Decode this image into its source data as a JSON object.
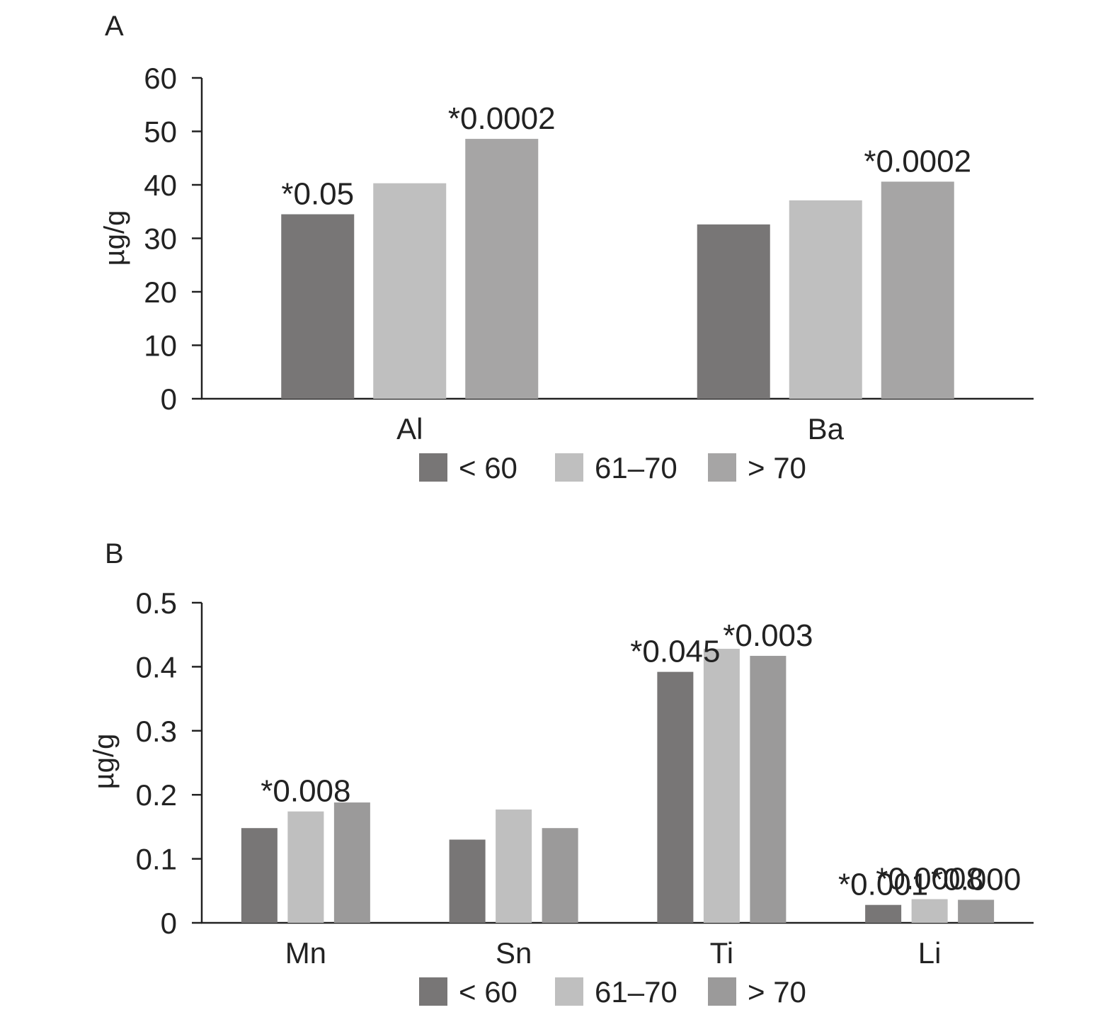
{
  "chart_data": [
    {
      "type": "bar",
      "panel": "A",
      "ylabel": "µg/g",
      "ylim": [
        0,
        60
      ],
      "yticks": [
        "0",
        "10",
        "20",
        "30",
        "40",
        "50",
        "60"
      ],
      "categories": [
        "Al",
        "Ba"
      ],
      "series": [
        {
          "name": "< 60",
          "color": "#787676",
          "values": [
            34.5,
            32.6
          ]
        },
        {
          "name": "61–70",
          "color": "#bfbfbf",
          "values": [
            40.3,
            37.1
          ]
        },
        {
          "name": "> 70",
          "color": "#a6a5a5",
          "values": [
            48.6,
            40.6
          ]
        }
      ],
      "annotations": [
        {
          "category": 0,
          "series": 0,
          "text": "*0.05"
        },
        {
          "category": 0,
          "series": 2,
          "text": "*0.0002"
        },
        {
          "category": 1,
          "series": 2,
          "text": "*0.0002"
        }
      ],
      "legend_position": "bottom",
      "grid": false
    },
    {
      "type": "bar",
      "panel": "B",
      "ylabel": "µg/g",
      "ylim": [
        0,
        0.5
      ],
      "yticks": [
        "0",
        "0.1",
        "0.2",
        "0.3",
        "0.4",
        "0.5"
      ],
      "categories": [
        "Mn",
        "Sn",
        "Ti",
        "Li"
      ],
      "series": [
        {
          "name": "< 60",
          "color": "#787676",
          "values": [
            0.148,
            0.13,
            0.392,
            0.028
          ]
        },
        {
          "name": "61–70",
          "color": "#bfbfbf",
          "values": [
            0.174,
            0.177,
            0.428,
            0.037
          ]
        },
        {
          "name": "> 70",
          "color": "#9b9a9a",
          "values": [
            0.188,
            0.148,
            0.417,
            0.036
          ]
        }
      ],
      "annotations": [
        {
          "category": 0,
          "series": 1,
          "text": "*0.008"
        },
        {
          "category": 2,
          "series": 0,
          "text": "*0.045"
        },
        {
          "category": 2,
          "series": 2,
          "text": "*0.003"
        },
        {
          "category": 3,
          "series": 0,
          "text": "*0.001"
        },
        {
          "category": 3,
          "series": 1,
          "text": "*0.0008"
        },
        {
          "category": 3,
          "series": 2,
          "text": "*0.000"
        }
      ],
      "legend_position": "bottom",
      "grid": false
    }
  ]
}
